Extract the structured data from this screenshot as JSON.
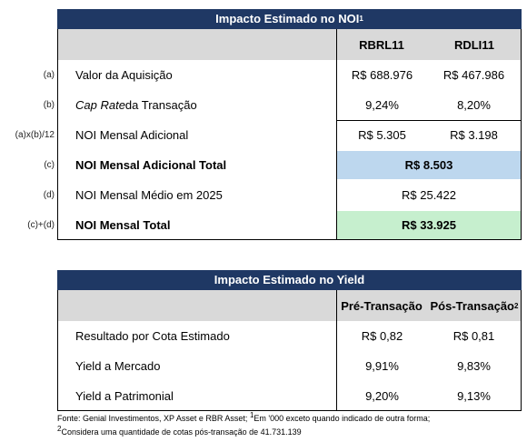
{
  "table1": {
    "title": "Impacto Estimado no NOI",
    "title_sup": "1",
    "columns": [
      "RBRL11",
      "RDLI11"
    ],
    "rows": [
      {
        "marker": "(a)",
        "label": "Valor da Aquisição",
        "values": [
          "R$ 688.976",
          "R$ 467.986"
        ]
      },
      {
        "marker": "(b)",
        "label_italic": "Cap Rate",
        "label": " da Transação",
        "values": [
          "9,24%",
          "8,20%"
        ]
      },
      {
        "marker": "(a)x(b)/12",
        "label": "NOI Mensal Adicional",
        "values": [
          "R$ 5.305",
          "R$ 3.198"
        ]
      },
      {
        "marker": "(c)",
        "label": "NOI Mensal Adicional Total",
        "value": "R$ 8.503"
      },
      {
        "marker": "(d)",
        "label": "NOI Mensal Médio em 2025",
        "value": "R$ 25.422"
      },
      {
        "marker": "(c)+(d)",
        "label": "NOI Mensal Total",
        "value": "R$ 33.925"
      }
    ]
  },
  "table2": {
    "title": "Impacto Estimado no Yield",
    "columns": [
      "Pré-Transação",
      "Pós-Transação"
    ],
    "column_sup": "2",
    "rows": [
      {
        "label": "Resultado por Cota Estimado",
        "values": [
          "R$ 0,82",
          "R$ 0,81"
        ]
      },
      {
        "label": "Yield a Mercado",
        "values": [
          "9,91%",
          "9,83%"
        ]
      },
      {
        "label": "Yield a Patrimonial",
        "values": [
          "9,20%",
          "9,13%"
        ]
      }
    ]
  },
  "footnote": {
    "line1": "Fonte: Genial Investimentos, XP Asset e RBR Asset; ",
    "sup1": "1",
    "line1b": "Em '000 exceto quando indicado de outra forma;",
    "sup2": "2",
    "line2": "Considera uma quantidade de cotas pós-transação de 41.731.139"
  }
}
